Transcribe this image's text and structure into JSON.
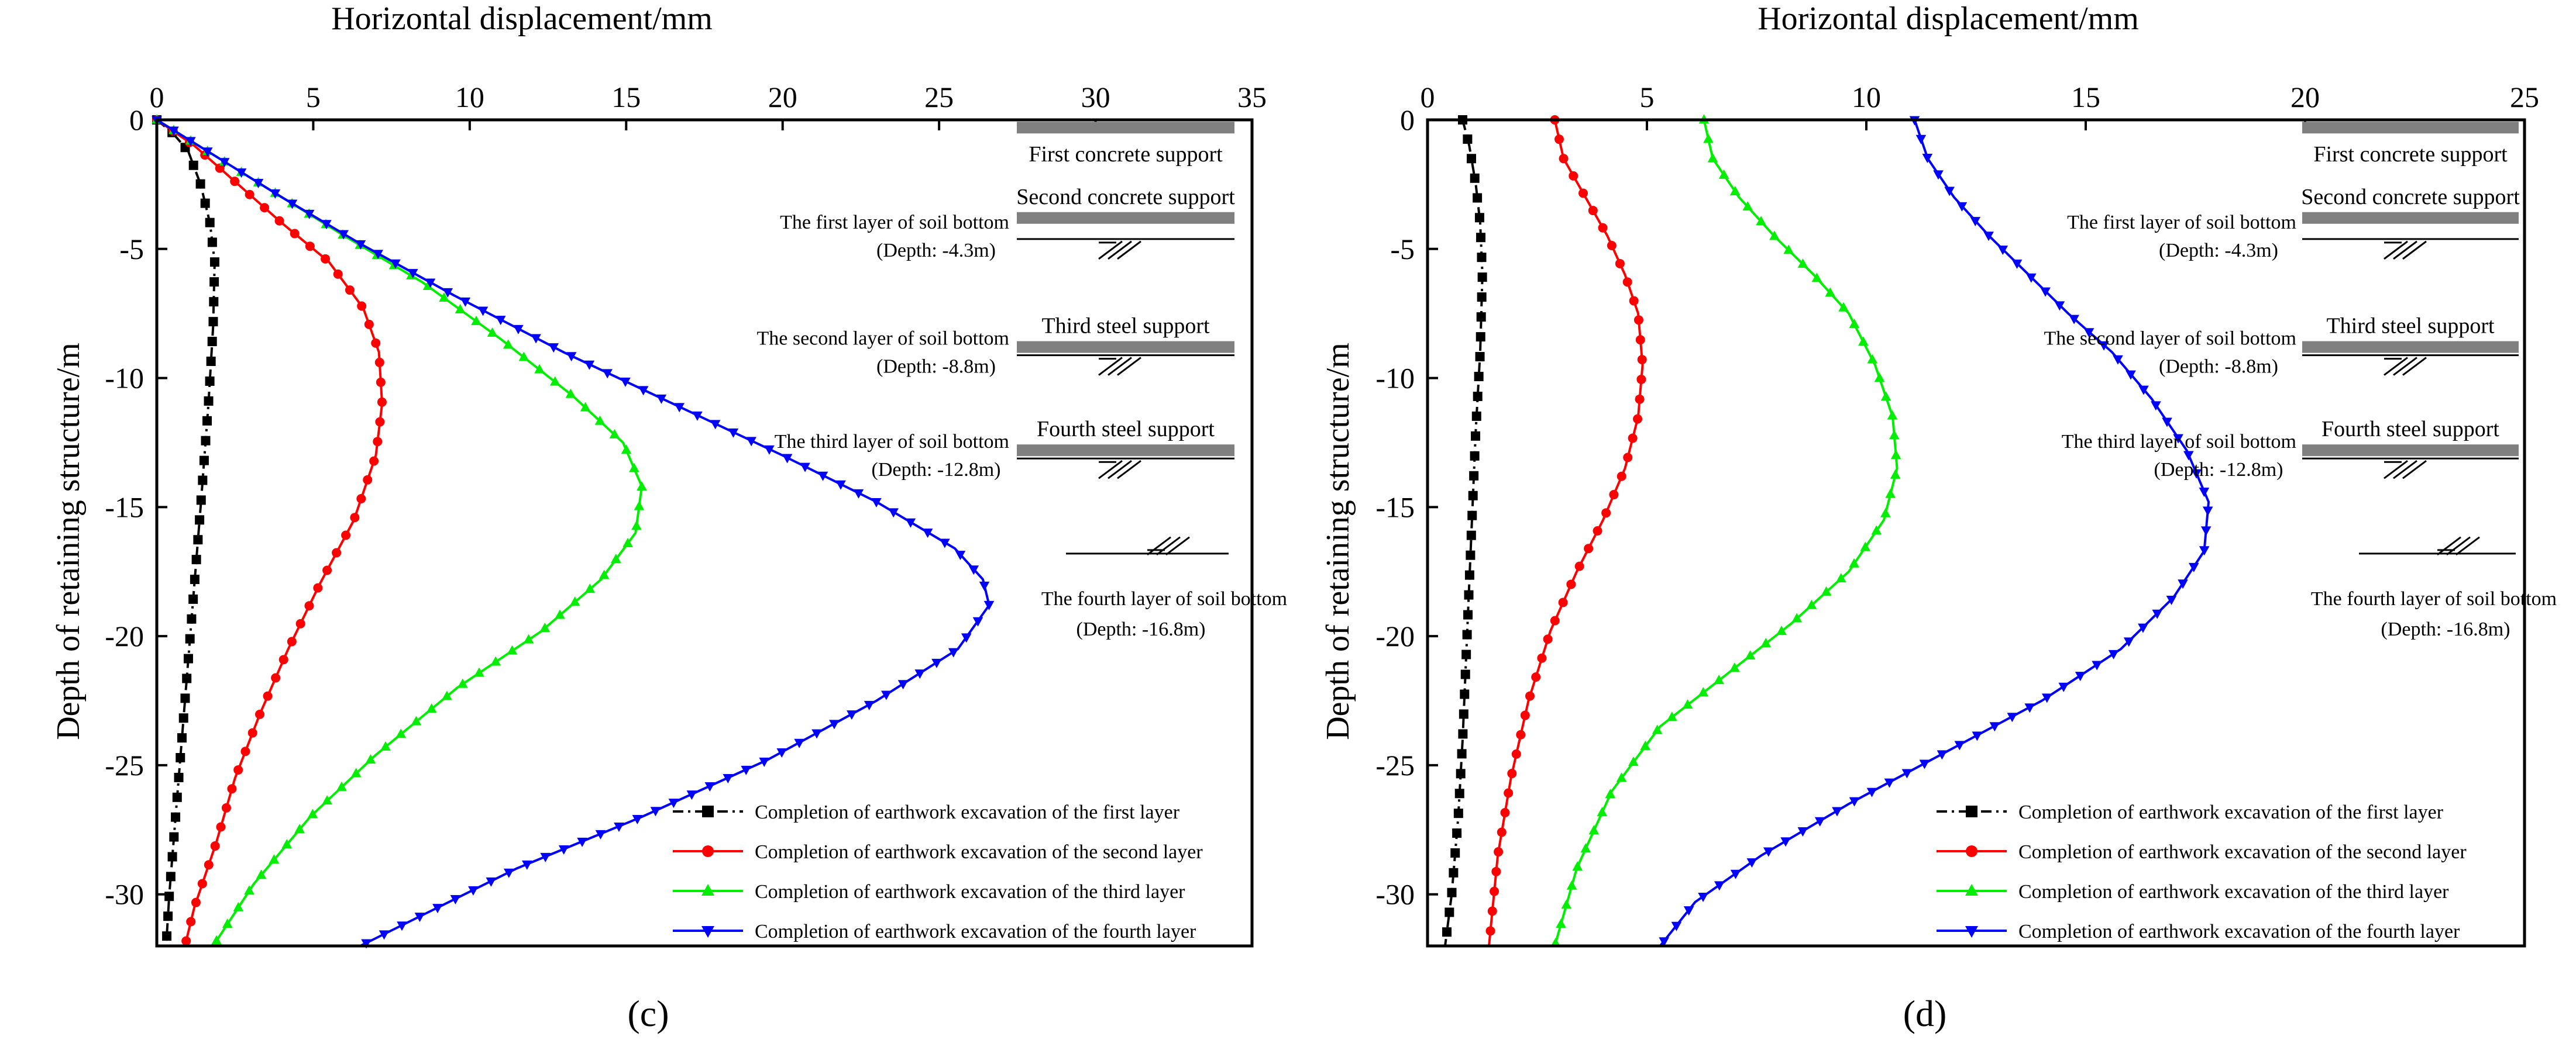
{
  "panel_labels": [
    "(c)",
    "(d)"
  ],
  "series_styles": [
    {
      "color": "#000000",
      "marker": "square",
      "dash": "18,8,4,8"
    },
    {
      "color": "#ff0000",
      "marker": "circle",
      "dash": ""
    },
    {
      "color": "#00ee00",
      "marker": "triangle-up",
      "dash": ""
    },
    {
      "color": "#0000ff",
      "marker": "triangle-down",
      "dash": ""
    }
  ],
  "chart_data": [
    {
      "type": "line",
      "title": "",
      "xlabel": "Horizontal displacement/mm",
      "ylabel": "Depth of retaining structure/m",
      "xlim": [
        0,
        35
      ],
      "ylim": [
        -32,
        0
      ],
      "xticks": [
        0,
        5,
        10,
        15,
        20,
        25,
        30,
        35
      ],
      "yticks": [
        0,
        -5,
        -10,
        -15,
        -20,
        -25,
        -30
      ],
      "legend_position": "bottom-right",
      "series": [
        {
          "name": "Completion of earthwork excavation of the first layer",
          "x": [
            0,
            0.5,
            1.0,
            1.4,
            1.7,
            1.85,
            1.8,
            1.65,
            1.4,
            1.2,
            1.0,
            0.8,
            0.6,
            0.4,
            0.3
          ],
          "y": [
            0,
            -0.5,
            -1.2,
            -2.5,
            -4.0,
            -5.5,
            -8.0,
            -11.0,
            -15.0,
            -18.0,
            -21.0,
            -24.0,
            -27.0,
            -30.0,
            -32.0
          ]
        },
        {
          "name": "Completion of earthwork excavation of the second layer",
          "x": [
            0,
            1.2,
            2.6,
            4.0,
            5.5,
            6.6,
            7.1,
            7.2,
            7.0,
            6.3,
            5.2,
            4.2,
            3.3,
            2.5,
            1.9,
            1.2,
            0.9
          ],
          "y": [
            0,
            -1.0,
            -2.5,
            -4.0,
            -5.5,
            -7.3,
            -9.0,
            -11.0,
            -13.0,
            -15.5,
            -18.0,
            -20.5,
            -23.0,
            -25.5,
            -28.0,
            -30.5,
            -32.0
          ]
        },
        {
          "name": "Completion of earthwork excavation of the third layer",
          "x": [
            0,
            2.0,
            4.0,
            6.0,
            8.5,
            11.0,
            13.3,
            14.9,
            15.5,
            15.3,
            14.2,
            12.3,
            9.6,
            7.0,
            4.9,
            3.1,
            1.8
          ],
          "y": [
            0,
            -1.5,
            -3.0,
            -4.5,
            -6.3,
            -8.5,
            -10.7,
            -12.5,
            -14.2,
            -16.0,
            -17.8,
            -19.8,
            -22.0,
            -24.6,
            -27.0,
            -29.6,
            -32.0
          ]
        },
        {
          "name": "Completion of earthwork excavation of the fourth layer",
          "x": [
            0,
            2.0,
            4.0,
            6.5,
            9.5,
            13.0,
            16.5,
            20.0,
            23.0,
            25.5,
            26.4,
            26.6,
            25.6,
            23.0,
            19.5,
            15.5,
            11.5,
            8.5,
            6.5
          ],
          "y": [
            0,
            -1.5,
            -3.0,
            -4.8,
            -6.8,
            -9.0,
            -11.0,
            -13.0,
            -14.8,
            -16.6,
            -17.8,
            -18.8,
            -20.5,
            -22.5,
            -24.8,
            -27.0,
            -29.0,
            -30.8,
            -32.0
          ]
        }
      ]
    },
    {
      "type": "line",
      "title": "",
      "xlabel": "Horizontal displacement/mm",
      "ylabel": "Depth of retaining structure/m",
      "xlim": [
        0,
        25
      ],
      "ylim": [
        -32,
        0
      ],
      "xticks": [
        0,
        5,
        10,
        15,
        20,
        25
      ],
      "yticks": [
        0,
        -5,
        -10,
        -15,
        -20,
        -25,
        -30
      ],
      "legend_position": "bottom-right",
      "series": [
        {
          "name": "Completion of earthwork excavation of the first layer",
          "x": [
            0.8,
            0.95,
            1.1,
            1.2,
            1.25,
            1.2,
            1.1,
            1.0,
            0.9,
            0.8,
            0.7,
            0.55,
            0.4
          ],
          "y": [
            0,
            -1.0,
            -2.5,
            -4.0,
            -6.0,
            -9.0,
            -12.0,
            -16.0,
            -20.0,
            -24.0,
            -27.0,
            -30.0,
            -32.0
          ]
        },
        {
          "name": "Completion of earthwork excavation of the second layer",
          "x": [
            2.9,
            3.1,
            3.6,
            4.1,
            4.5,
            4.8,
            4.9,
            4.8,
            4.5,
            4.0,
            3.4,
            2.8,
            2.3,
            1.9,
            1.6,
            1.4
          ],
          "y": [
            0,
            -1.5,
            -3.0,
            -4.5,
            -6.0,
            -7.5,
            -9.5,
            -11.5,
            -13.5,
            -15.5,
            -17.5,
            -19.8,
            -22.5,
            -25.5,
            -28.5,
            -32.0
          ]
        },
        {
          "name": "Completion of earthwork excavation of the third layer",
          "x": [
            6.3,
            6.5,
            7.1,
            7.9,
            8.8,
            9.6,
            10.2,
            10.6,
            10.7,
            10.4,
            9.6,
            8.3,
            6.8,
            5.3,
            4.2,
            3.4,
            2.9
          ],
          "y": [
            0,
            -1.5,
            -3.0,
            -4.5,
            -6.0,
            -7.5,
            -9.5,
            -11.5,
            -13.5,
            -15.5,
            -17.5,
            -19.5,
            -21.5,
            -23.5,
            -26.0,
            -29.0,
            -32.0
          ]
        },
        {
          "name": "Completion of earthwork excavation of the fourth layer",
          "x": [
            11.1,
            11.4,
            12.0,
            12.8,
            13.7,
            14.6,
            15.6,
            16.5,
            17.3,
            17.8,
            17.7,
            17.0,
            15.8,
            14.0,
            11.8,
            9.6,
            7.6,
            6.1,
            5.3
          ],
          "y": [
            0,
            -1.5,
            -3.0,
            -4.5,
            -6.0,
            -7.5,
            -9.0,
            -10.8,
            -12.8,
            -14.8,
            -16.7,
            -18.5,
            -20.5,
            -22.5,
            -24.5,
            -26.5,
            -28.5,
            -30.3,
            -32.0
          ]
        }
      ]
    }
  ],
  "annotations": [
    {
      "supports": [
        {
          "label": "First concrete support",
          "depth": -0.3
        },
        {
          "label": "Second concrete support",
          "depth": -3.8
        },
        {
          "label": "Third steel support",
          "depth": -8.8
        },
        {
          "label": "Fourth steel support",
          "depth": -12.8
        }
      ],
      "soil_layers": [
        {
          "label": "The first layer of soil bottom",
          "depth_label": "(Depth: -4.3m)",
          "depth": -4.3
        },
        {
          "label": "The second layer of soil bottom",
          "depth_label": "(Depth: -8.8m)",
          "depth": -8.8
        },
        {
          "label": "The third layer of soil bottom",
          "depth_label": "(Depth: -12.8m)",
          "depth": -12.8
        },
        {
          "label": "The fourth layer of soil bottom",
          "depth_label": "(Depth: -16.8m)",
          "depth": -16.8
        }
      ]
    },
    {
      "supports": [
        {
          "label": "First concrete support",
          "depth": -0.3
        },
        {
          "label": "Second concrete support",
          "depth": -3.8
        },
        {
          "label": "Third steel support",
          "depth": -8.8
        },
        {
          "label": "Fourth steel support",
          "depth": -12.8
        }
      ],
      "soil_layers": [
        {
          "label": "The first layer of soil bottom",
          "depth_label": "(Depth: -4.3m)",
          "depth": -4.3
        },
        {
          "label": "The second layer of soil bottom",
          "depth_label": "(Depth: -8.8m)",
          "depth": -8.8
        },
        {
          "label": "The third layer of soil bottom",
          "depth_label": "(Depth: -12.8m)",
          "depth": -12.8
        },
        {
          "label": "The fourth layer of soil bottom",
          "depth_label": "(Depth: -16.8m)",
          "depth": -16.8
        }
      ]
    }
  ]
}
